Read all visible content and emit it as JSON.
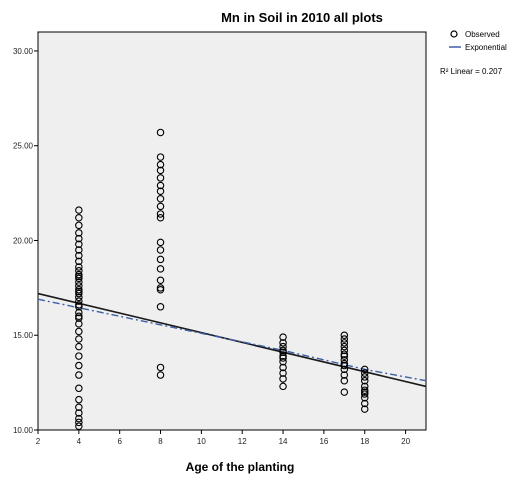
{
  "chart_data": {
    "type": "scatter",
    "title": "Mn in Soil in 2010 all plots",
    "xlabel": "Age of the planting",
    "ylabel": "",
    "xlim": [
      2,
      21
    ],
    "ylim": [
      10,
      31
    ],
    "x_ticks": [
      "2",
      "4",
      "6",
      "8",
      "10",
      "12",
      "14",
      "16",
      "18",
      "20"
    ],
    "y_ticks": [
      "10.00",
      "15.00",
      "20.00",
      "25.00",
      "30.00"
    ],
    "grid": false,
    "legend_position": "top-right",
    "legend": {
      "observed": "Observed",
      "exponential": "Exponential",
      "r2_label": "R² Linear = 0.207"
    },
    "colors": {
      "background": "#efefef",
      "points": "#000000",
      "linear_fit": "#1a1a1a",
      "exponential_fit": "#3f5fa8"
    },
    "series": [
      {
        "name": "Observed",
        "kind": "points",
        "x": [
          4,
          4,
          4,
          4,
          4,
          4,
          4,
          4,
          4,
          4,
          4,
          4,
          4,
          4,
          4,
          4,
          4,
          4,
          4,
          4,
          4,
          4,
          4,
          4,
          4,
          4,
          4,
          4,
          4,
          4,
          4,
          4,
          4,
          4,
          4,
          4,
          4,
          4,
          4,
          4,
          8,
          8,
          8,
          8,
          8,
          8,
          8,
          8,
          8,
          8,
          8,
          8,
          8,
          8,
          8,
          8,
          8,
          8,
          8,
          8,
          8,
          14,
          14,
          14,
          14,
          14,
          14,
          14,
          14,
          14,
          14,
          14,
          14,
          17,
          17,
          17,
          17,
          17,
          17,
          17,
          17,
          17,
          17,
          17,
          17,
          17,
          17,
          18,
          18,
          18,
          18,
          18,
          18,
          18,
          18,
          18,
          18,
          18
        ],
        "y": [
          10.2,
          10.4,
          10.6,
          10.9,
          11.2,
          11.6,
          12.2,
          12.9,
          13.4,
          13.9,
          14.4,
          14.8,
          15.2,
          15.6,
          15.9,
          16.2,
          16.5,
          16.8,
          17.0,
          17.2,
          17.4,
          17.6,
          17.8,
          18.0,
          18.2,
          18.4,
          18.6,
          18.9,
          19.2,
          19.5,
          19.8,
          20.1,
          20.4,
          20.8,
          21.2,
          21.6,
          16.0,
          16.6,
          17.3,
          18.1,
          12.9,
          13.3,
          16.5,
          17.4,
          17.9,
          18.5,
          19.0,
          19.5,
          19.9,
          21.2,
          21.4,
          21.8,
          22.2,
          22.6,
          22.9,
          23.3,
          23.7,
          24.0,
          24.4,
          25.7,
          17.5,
          12.3,
          12.7,
          13.0,
          13.3,
          13.6,
          13.9,
          14.1,
          14.4,
          14.6,
          14.9,
          14.2,
          13.8,
          12.0,
          12.6,
          12.9,
          13.2,
          13.5,
          13.7,
          13.9,
          14.2,
          14.4,
          14.6,
          14.8,
          15.0,
          13.4,
          14.0,
          11.1,
          11.4,
          11.7,
          12.0,
          12.3,
          12.6,
          12.8,
          13.0,
          13.2,
          12.1,
          11.9
        ]
      },
      {
        "name": "Linear",
        "kind": "line",
        "x": [
          2,
          21
        ],
        "y": [
          17.2,
          12.3
        ]
      },
      {
        "name": "Exponential",
        "kind": "line",
        "x": [
          2,
          6,
          10,
          14,
          18,
          21
        ],
        "y": [
          16.9,
          16.0,
          15.1,
          14.2,
          13.2,
          12.6
        ]
      }
    ]
  }
}
